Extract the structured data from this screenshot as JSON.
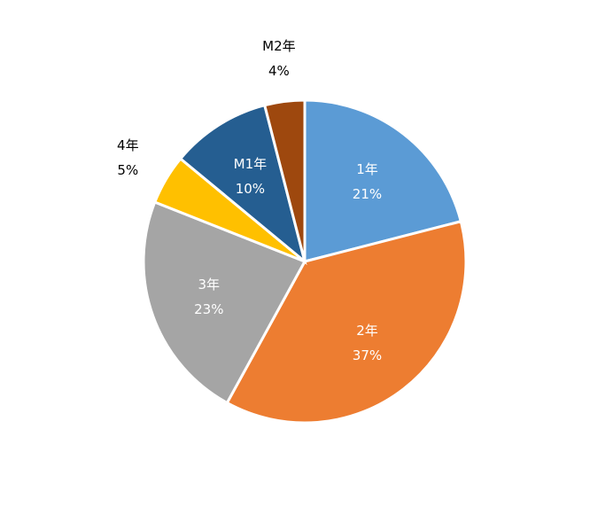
{
  "chart_data": {
    "type": "pie",
    "title": "",
    "categories": [
      "1年",
      "2年",
      "3年",
      "4年",
      "M1年",
      "M2年"
    ],
    "values": [
      21,
      37,
      23,
      5,
      10,
      4
    ],
    "percent_labels": [
      "21%",
      "37%",
      "23%",
      "5%",
      "10%",
      "4%"
    ],
    "colors": [
      "#5B9BD5",
      "#ED7D31",
      "#A5A5A5",
      "#FFC000",
      "#255E91",
      "#9E480E"
    ],
    "label_positions": [
      "inside",
      "inside",
      "inside",
      "outside",
      "inside",
      "outside"
    ],
    "label_colors": [
      "#ffffff",
      "#ffffff",
      "#ffffff",
      "#000000",
      "#ffffff",
      "#000000"
    ],
    "start_angle_deg": 0,
    "direction": "clockwise",
    "legend": "none"
  }
}
